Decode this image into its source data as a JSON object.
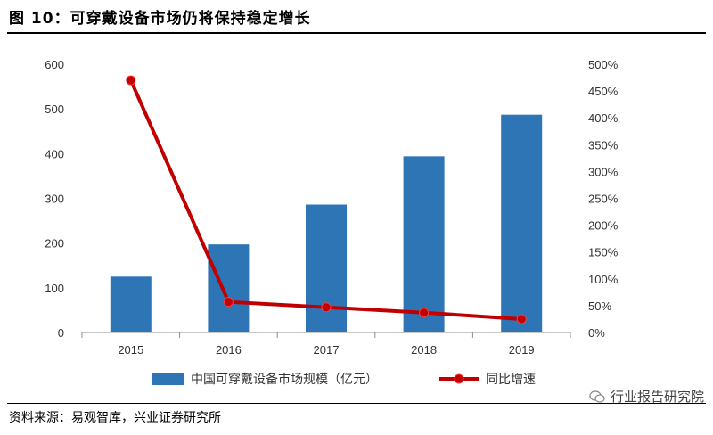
{
  "figure": {
    "title": "图 10：可穿戴设备市场仍将保持稳定增长",
    "source": "资料来源：易观智库，兴业证券研究所",
    "watermark": "行业报告研究院",
    "watermark_icon": "wechat-logo-icon"
  },
  "chart_data": {
    "type": "bar",
    "categories": [
      "2015",
      "2016",
      "2017",
      "2018",
      "2019"
    ],
    "series": [
      {
        "name": "中国可穿戴设备市场规模（亿元）",
        "type": "bar",
        "axis": "left",
        "color": "#2e75b6",
        "values": [
          125,
          197,
          286,
          394,
          487
        ]
      },
      {
        "name": "同比增速",
        "type": "line",
        "axis": "right",
        "color": "#c00000",
        "marker": "circle",
        "values": [
          470,
          57,
          47,
          37,
          25
        ]
      }
    ],
    "y_left": {
      "min": 0,
      "max": 600,
      "step": 100,
      "ticks": [
        "0",
        "100",
        "200",
        "300",
        "400",
        "500",
        "600"
      ]
    },
    "y_right": {
      "min": 0,
      "max": 500,
      "step": 50,
      "unit": "%",
      "ticks": [
        "0%",
        "50%",
        "100%",
        "150%",
        "200%",
        "250%",
        "300%",
        "350%",
        "400%",
        "450%",
        "500%"
      ]
    },
    "grid": false,
    "legend": {
      "position": "bottom"
    }
  }
}
